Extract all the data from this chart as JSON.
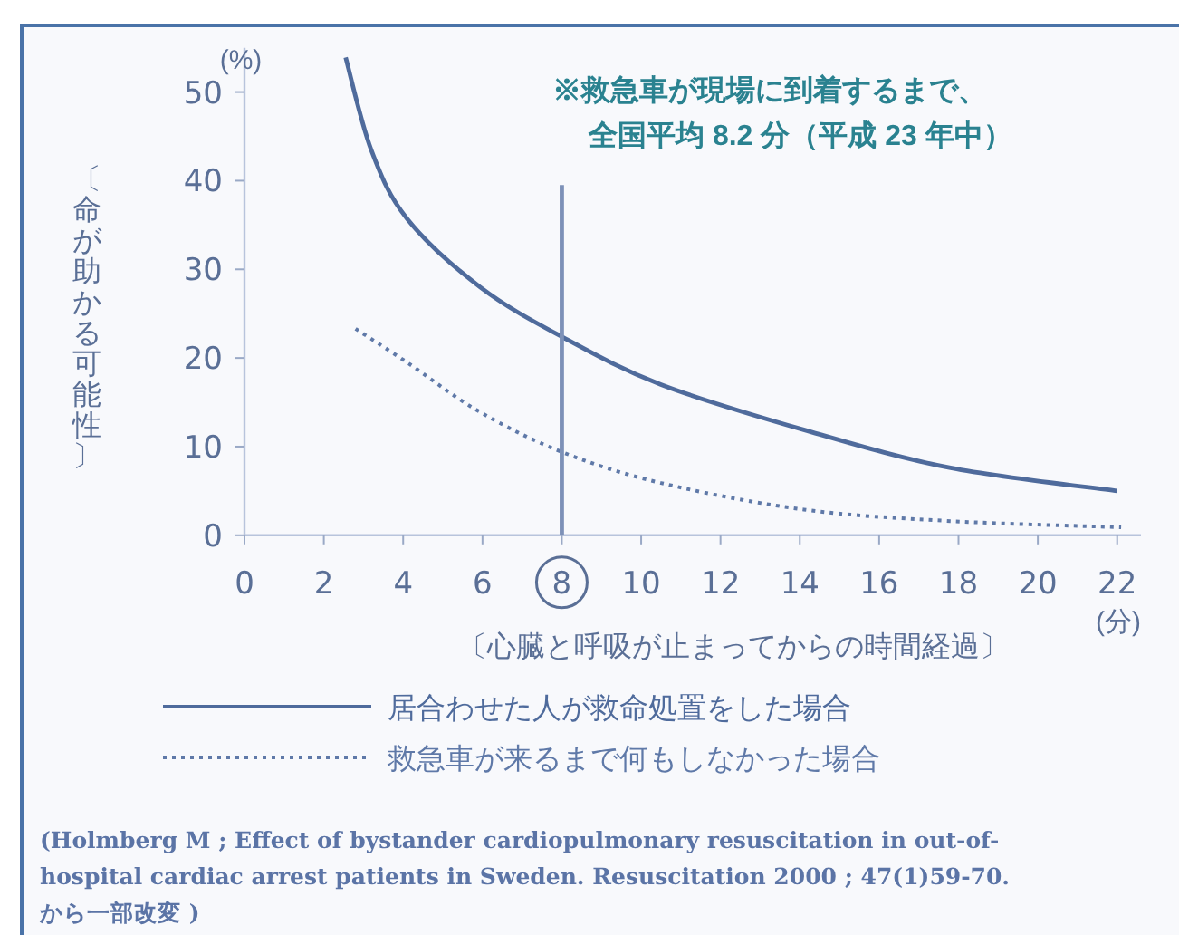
{
  "chart_data": {
    "type": "line",
    "ylabel": "〔命が助かる可能性〕",
    "xlabel": "〔心臓と呼吸が止まってからの時間経過〕",
    "xlim": [
      0,
      22.6
    ],
    "ylim": [
      0,
      55
    ],
    "xticks": [
      0,
      2,
      4,
      6,
      8,
      10,
      12,
      14,
      16,
      18,
      20,
      22
    ],
    "yticks": [
      0,
      10,
      20,
      30,
      40,
      50
    ],
    "grid": false,
    "legend": "bottom",
    "marker": "none",
    "series": [
      {
        "name": "居合わせた人が救命処置をした場合",
        "color": "#4f6b9c",
        "line_style": "solid",
        "x": [
          2.55,
          3.2,
          4.1,
          5.94,
          8.0,
          10.5,
          14.1,
          17.8,
          22.0
        ],
        "values": [
          53.9,
          43.4,
          35.7,
          28.0,
          22.4,
          17.0,
          11.9,
          7.6,
          5.0
        ]
      },
      {
        "name": "救急車が来るまで何もしなかった場合",
        "color": "#5f79a8",
        "line_style": "dotted",
        "x": [
          2.8,
          4.1,
          5.9,
          8.0,
          10.5,
          14.1,
          17.8,
          22.1
        ],
        "values": [
          23.3,
          19.5,
          14.0,
          9.4,
          5.9,
          2.9,
          1.6,
          0.9
        ]
      },
      {
        "color": "#7d91b8",
        "line_style": "solid",
        "x": [
          8,
          8
        ],
        "values": [
          0,
          39.5
        ]
      }
    ],
    "annotations": [
      "(%)",
      "(分)",
      "※救急車が現場に到着するまで、",
      "全国平均 8.2 分（平成 23 年中）",
      "(Holmberg M ; Effect of bystander cardiopulmonary resuscitation in out-of-\nhospital cardiac arrest patients in Sweden. Resuscitation 2000 ; 47(1)59-70.\nから一部改変 )"
    ]
  }
}
